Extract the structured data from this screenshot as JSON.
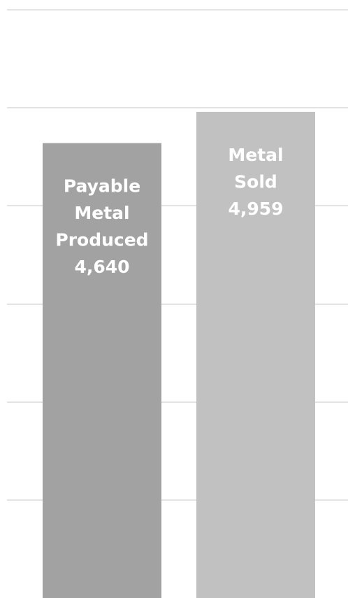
{
  "chart_data": {
    "type": "bar",
    "categories": [
      "Payable Metal Produced",
      "Metal Sold"
    ],
    "values": [
      4640,
      4959
    ],
    "ylim": [
      0,
      6000
    ],
    "grid": true,
    "colors": [
      "#a2a2a2",
      "#c1c1c1"
    ],
    "data_labels": [
      [
        "Payable",
        "Metal",
        "Produced",
        "4,640"
      ],
      [
        "Metal",
        "Sold",
        "4,959"
      ]
    ]
  }
}
